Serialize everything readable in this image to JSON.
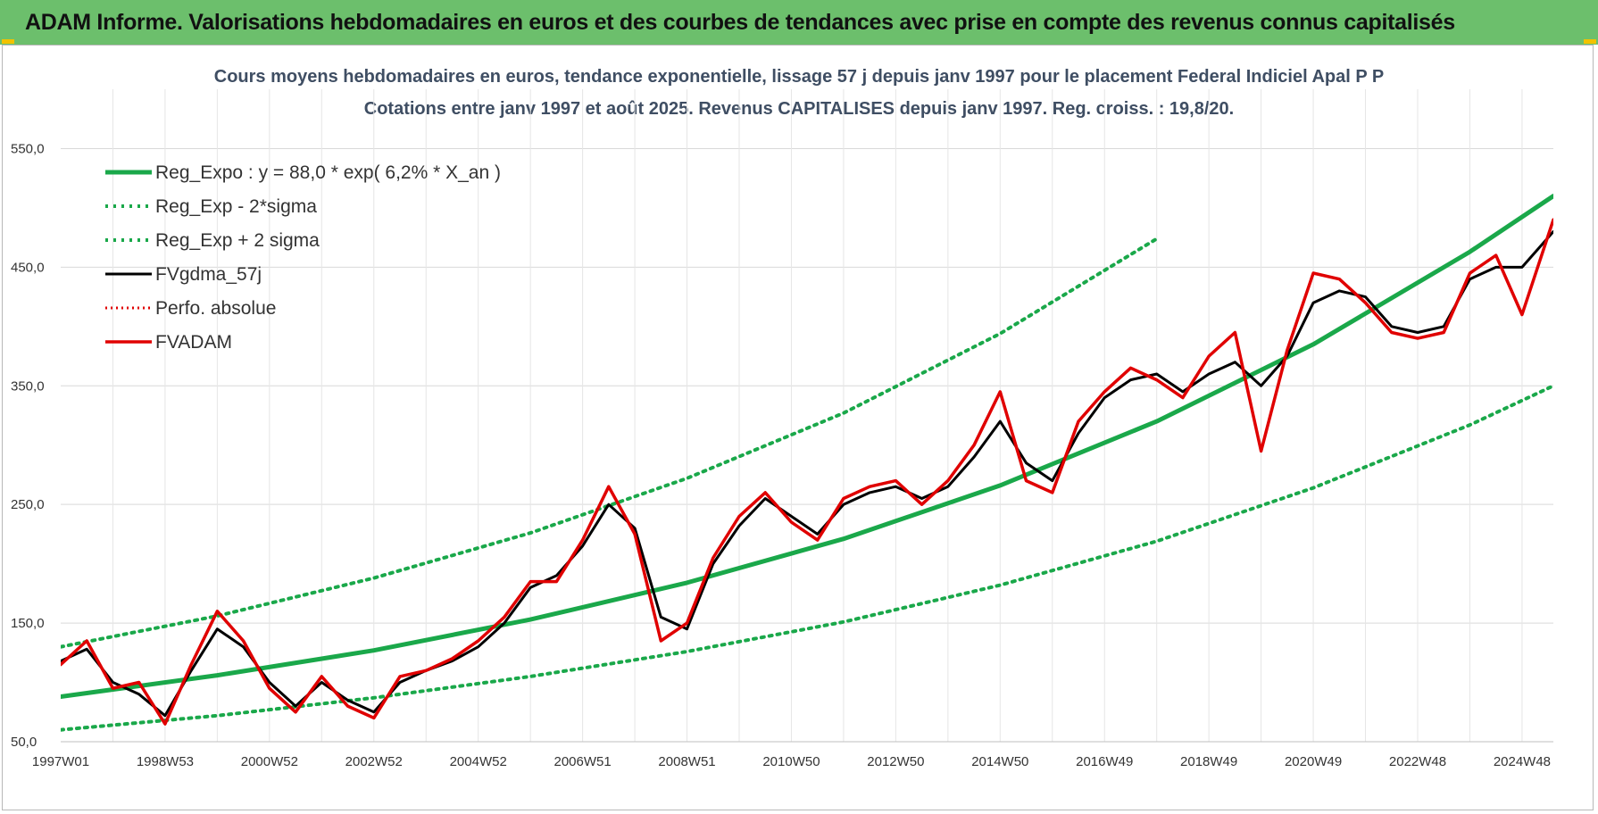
{
  "header": {
    "title": "ADAM Informe. Valorisations hebdomadaires en euros et des courbes de tendances avec prise en compte des revenus connus capitalisés"
  },
  "chart_data": {
    "type": "line",
    "title": "Cours moyens hebdomadaires en euros, tendance exponentielle, lissage 57 j depuis janv 1997 pour le placement Federal Indiciel Apal P P",
    "subtitle": "Cotations entre janv 1997 et août 2025.  Revenus CAPITALISES depuis janv 1997. Reg.  croiss. : 19,8/20.",
    "xlabel": "",
    "ylabel": "",
    "x_range": [
      1997.0,
      2025.6
    ],
    "ylim": [
      50,
      600
    ],
    "yticks": [
      "50,0",
      "150,0",
      "250,0",
      "350,0",
      "450,0",
      "550,0"
    ],
    "ytick_values": [
      50,
      150,
      250,
      350,
      450,
      550
    ],
    "xticks": [
      "1997W01",
      "1998W53",
      "2000W52",
      "2002W52",
      "2004W52",
      "2006W51",
      "2008W51",
      "2010W50",
      "2012W50",
      "2014W50",
      "2016W49",
      "2018W49",
      "2020W49",
      "2022W48",
      "2024W48"
    ],
    "xtick_values": [
      1997.0,
      1999.0,
      2001.0,
      2003.0,
      2005.0,
      2007.0,
      2009.0,
      2011.0,
      2013.0,
      2015.0,
      2017.0,
      2019.0,
      2021.0,
      2023.0,
      2025.0
    ],
    "grid": true,
    "legend_position": "top-left",
    "trend_model": "y = 88.0 * exp(0.062 * X_an)",
    "series": [
      {
        "name": "Reg_Expo : y = 88,0 * exp( 6,2% *  X_an )",
        "color": "#1aa84a",
        "style": "solid",
        "x": [
          1997.0,
          2000.0,
          2003.0,
          2006.0,
          2009.0,
          2012.0,
          2015.0,
          2018.0,
          2021.0,
          2024.0,
          2025.6
        ],
        "values": [
          88.0,
          106.0,
          127.0,
          153.0,
          184.0,
          221.0,
          266.0,
          320.0,
          385.0,
          463.0,
          510.0
        ]
      },
      {
        "name": "Reg_Exp - 2*sigma",
        "color": "#1aa84a",
        "style": "dotted",
        "x": [
          1997.0,
          2000.0,
          2003.0,
          2006.0,
          2009.0,
          2012.0,
          2015.0,
          2018.0,
          2021.0,
          2024.0,
          2025.6
        ],
        "values": [
          60.0,
          72.0,
          87.0,
          105.0,
          126.0,
          151.0,
          182.0,
          219.0,
          264.0,
          317.0,
          350.0
        ]
      },
      {
        "name": "Reg_Exp + 2 sigma",
        "color": "#1aa84a",
        "style": "dotted",
        "x": [
          1997.0,
          2000.0,
          2003.0,
          2006.0,
          2009.0,
          2012.0,
          2015.0,
          2018.0
        ],
        "values": [
          130.0,
          156.0,
          188.0,
          226.0,
          272.0,
          327.0,
          394.0,
          474.0
        ]
      },
      {
        "name": "FVgdma_57j",
        "color": "#000000",
        "style": "solid",
        "x": [
          1997.0,
          1997.5,
          1998.0,
          1998.5,
          1999.0,
          1999.5,
          2000.0,
          2000.5,
          2001.0,
          2001.5,
          2002.0,
          2002.5,
          2003.0,
          2003.5,
          2004.0,
          2004.5,
          2005.0,
          2005.5,
          2006.0,
          2006.5,
          2007.0,
          2007.5,
          2008.0,
          2008.5,
          2009.0,
          2009.5,
          2010.0,
          2010.5,
          2011.0,
          2011.5,
          2012.0,
          2012.5,
          2013.0,
          2013.5,
          2014.0,
          2014.5,
          2015.0,
          2015.5,
          2016.0,
          2016.5,
          2017.0,
          2017.5,
          2018.0,
          2018.5,
          2019.0,
          2019.5,
          2020.0,
          2020.5,
          2021.0,
          2021.5,
          2022.0,
          2022.5,
          2023.0,
          2023.5,
          2024.0,
          2024.5,
          2025.0,
          2025.6
        ],
        "values": [
          118,
          128,
          100,
          90,
          72,
          110,
          145,
          130,
          100,
          80,
          100,
          85,
          75,
          100,
          110,
          118,
          130,
          150,
          180,
          190,
          215,
          250,
          230,
          155,
          145,
          200,
          232,
          255,
          240,
          225,
          250,
          260,
          265,
          255,
          265,
          290,
          320,
          285,
          270,
          310,
          340,
          355,
          360,
          345,
          360,
          370,
          350,
          375,
          420,
          430,
          425,
          400,
          395,
          400,
          440,
          450,
          450,
          480
        ]
      },
      {
        "name": "Perfo. absolue",
        "color": "#e00000",
        "style": "dotted",
        "x": [
          1997.0,
          1997.5,
          1998.0,
          1998.5,
          1999.0,
          1999.5,
          2000.0,
          2000.5,
          2001.0,
          2001.5,
          2002.0,
          2002.5,
          2003.0,
          2003.5,
          2004.0,
          2004.5,
          2005.0,
          2005.5,
          2006.0,
          2006.5,
          2007.0,
          2007.5,
          2008.0,
          2008.5,
          2009.0,
          2009.5,
          2010.0,
          2010.5,
          2011.0,
          2011.5,
          2012.0,
          2012.5,
          2013.0,
          2013.5,
          2014.0,
          2014.5,
          2015.0,
          2015.5,
          2016.0,
          2016.5,
          2017.0,
          2017.5,
          2018.0,
          2018.5,
          2019.0,
          2019.5,
          2020.0,
          2020.5,
          2021.0,
          2021.5,
          2022.0,
          2022.5,
          2023.0,
          2023.5,
          2024.0,
          2024.5,
          2025.0,
          2025.6
        ],
        "values": [
          115,
          135,
          95,
          100,
          65,
          115,
          160,
          135,
          95,
          75,
          105,
          80,
          70,
          105,
          110,
          120,
          135,
          155,
          185,
          185,
          220,
          265,
          225,
          135,
          150,
          205,
          240,
          260,
          235,
          220,
          255,
          265,
          270,
          250,
          270,
          300,
          345,
          270,
          260,
          320,
          345,
          365,
          355,
          340,
          375,
          395,
          295,
          380,
          445,
          440,
          420,
          395,
          390,
          395,
          445,
          460,
          410,
          490
        ]
      },
      {
        "name": "FVADAM",
        "color": "#e00000",
        "style": "solid",
        "x": [
          1997.0,
          1997.5,
          1998.0,
          1998.5,
          1999.0,
          1999.5,
          2000.0,
          2000.5,
          2001.0,
          2001.5,
          2002.0,
          2002.5,
          2003.0,
          2003.5,
          2004.0,
          2004.5,
          2005.0,
          2005.5,
          2006.0,
          2006.5,
          2007.0,
          2007.5,
          2008.0,
          2008.5,
          2009.0,
          2009.5,
          2010.0,
          2010.5,
          2011.0,
          2011.5,
          2012.0,
          2012.5,
          2013.0,
          2013.5,
          2014.0,
          2014.5,
          2015.0,
          2015.5,
          2016.0,
          2016.5,
          2017.0,
          2017.5,
          2018.0,
          2018.5,
          2019.0,
          2019.5,
          2020.0,
          2020.5,
          2021.0,
          2021.5,
          2022.0,
          2022.5,
          2023.0,
          2023.5,
          2024.0,
          2024.5,
          2025.0,
          2025.6
        ],
        "values": [
          115,
          135,
          95,
          100,
          65,
          115,
          160,
          135,
          95,
          75,
          105,
          80,
          70,
          105,
          110,
          120,
          135,
          155,
          185,
          185,
          220,
          265,
          225,
          135,
          150,
          205,
          240,
          260,
          235,
          220,
          255,
          265,
          270,
          250,
          270,
          300,
          345,
          270,
          260,
          320,
          345,
          365,
          355,
          340,
          375,
          395,
          295,
          380,
          445,
          440,
          420,
          395,
          390,
          395,
          445,
          460,
          410,
          490
        ]
      }
    ]
  }
}
